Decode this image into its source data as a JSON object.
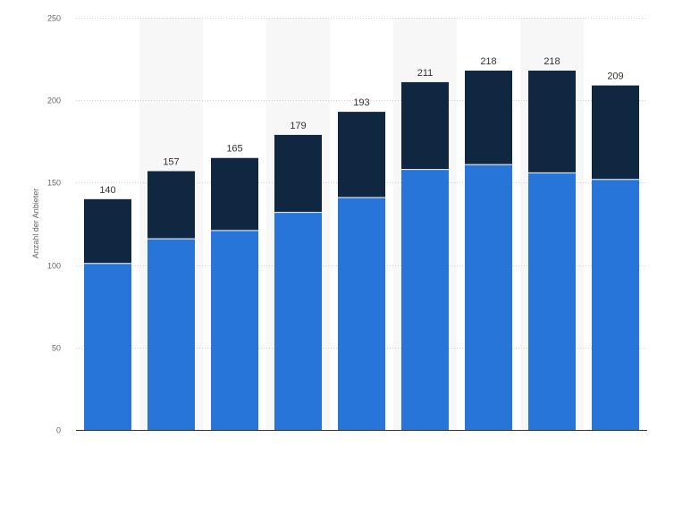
{
  "chart_data": {
    "type": "bar",
    "stacked": true,
    "title": "",
    "xlabel": "",
    "ylabel": "Anzahl der Anbieter",
    "ylim": [
      0,
      250
    ],
    "yticks": [
      0,
      50,
      100,
      150,
      200,
      250
    ],
    "grid": true,
    "legend": "none",
    "categories": [
      "",
      "",
      "",
      "",
      "",
      "",
      "",
      "",
      ""
    ],
    "series": [
      {
        "color": "#2775d9",
        "values": [
          101,
          116,
          121,
          132,
          141,
          158,
          161,
          156,
          152
        ]
      },
      {
        "color": "#0f2740",
        "values": [
          39,
          41,
          44,
          47,
          52,
          53,
          57,
          62,
          57
        ]
      }
    ],
    "totals": [
      "140",
      "157",
      "165",
      "179",
      "193",
      "211",
      "218",
      "218",
      "209"
    ]
  }
}
